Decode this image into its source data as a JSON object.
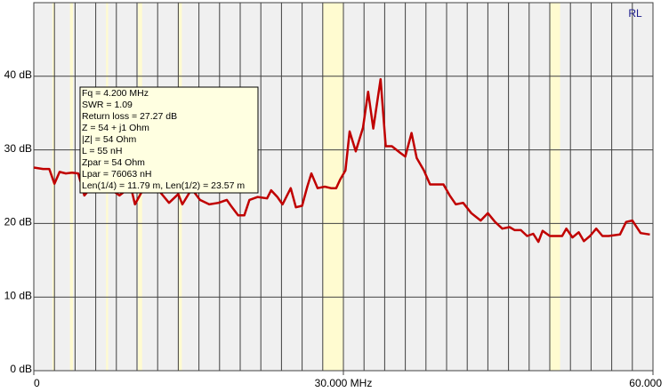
{
  "chart_data": {
    "type": "line",
    "title": "RL",
    "x": [
      0.0,
      0.9,
      1.5,
      2.0,
      2.5,
      3.1,
      3.7,
      4.3,
      4.9,
      6.0,
      7.1,
      8.3,
      9.4,
      9.8,
      10.5,
      11.8,
      13.1,
      14.0,
      14.4,
      15.3,
      16.1,
      17.0,
      17.9,
      18.7,
      19.1,
      19.8,
      20.4,
      20.9,
      21.7,
      22.6,
      23.0,
      23.6,
      24.1,
      24.9,
      25.4,
      26.0,
      26.5,
      26.9,
      27.5,
      28.2,
      28.8,
      29.3,
      29.7,
      30.2,
      30.6,
      31.2,
      31.9,
      32.4,
      32.9,
      33.6,
      34.1,
      34.7,
      35.5,
      36.0,
      36.6,
      37.1,
      37.8,
      38.4,
      39.7,
      40.3,
      40.9,
      41.6,
      42.4,
      43.3,
      44.0,
      44.7,
      45.4,
      46.1,
      46.6,
      47.2,
      47.8,
      48.4,
      48.9,
      49.3,
      50.0,
      51.2,
      51.6,
      52.2,
      52.8,
      53.3,
      53.9,
      54.5,
      55.1,
      55.7,
      56.8,
      57.4,
      58.0,
      58.8,
      59.7
    ],
    "values": [
      27.6,
      27.4,
      27.4,
      25.4,
      27.0,
      26.8,
      26.9,
      26.8,
      23.8,
      25.6,
      25.0,
      23.8,
      25.0,
      22.6,
      24.4,
      25.0,
      22.8,
      24.0,
      22.6,
      24.7,
      23.2,
      22.6,
      22.8,
      23.2,
      22.4,
      21.1,
      21.1,
      23.2,
      23.6,
      23.4,
      24.5,
      23.6,
      22.6,
      24.8,
      22.2,
      22.4,
      25.0,
      26.8,
      24.8,
      25.0,
      24.8,
      24.8,
      26.0,
      27.2,
      32.5,
      29.8,
      33.0,
      37.9,
      32.9,
      39.6,
      30.5,
      30.5,
      29.6,
      29.1,
      32.3,
      28.9,
      27.2,
      25.3,
      25.3,
      23.8,
      22.6,
      22.8,
      21.4,
      20.4,
      21.4,
      20.2,
      19.3,
      19.5,
      19.1,
      19.1,
      18.3,
      18.6,
      17.5,
      19.0,
      18.3,
      18.3,
      19.3,
      18.1,
      18.8,
      17.6,
      18.3,
      19.3,
      18.3,
      18.3,
      18.5,
      20.2,
      20.4,
      18.7,
      18.5
    ],
    "color": "#c00000",
    "xlim": [
      0,
      60
    ],
    "xticks": [
      {
        "value": 0,
        "label": "0"
      },
      {
        "value": 30,
        "label": "30.000 MHz"
      },
      {
        "value": 60,
        "label": "60.000"
      }
    ],
    "xgrid": [
      2,
      4,
      6,
      8,
      10,
      12,
      14,
      16,
      18,
      20,
      22,
      24,
      26,
      28,
      30,
      32,
      34,
      36,
      38,
      40,
      42,
      44,
      46,
      48,
      50,
      52,
      54,
      56,
      58
    ],
    "ylim": [
      0,
      50
    ],
    "yticks": [
      {
        "value": 0,
        "label": "0 dB"
      },
      {
        "value": 10,
        "label": "10 dB"
      },
      {
        "value": 20,
        "label": "20 dB"
      },
      {
        "value": 30,
        "label": "30 dB"
      },
      {
        "value": 40,
        "label": "40 dB"
      }
    ],
    "bands": [
      [
        1.8,
        2.0
      ],
      [
        3.5,
        3.8
      ],
      [
        7.0,
        7.2
      ],
      [
        10.1,
        10.5
      ],
      [
        14.0,
        14.35
      ],
      [
        28.0,
        30.0
      ],
      [
        50.0,
        51.0
      ]
    ],
    "band_color": "#fffbd0",
    "grid": true,
    "cursor_info": [
      "Fq = 4.200 MHz",
      "SWR = 1.09",
      "Return loss = 27.27 dB",
      "Z = 54 + j1 Ohm",
      "|Z| = 54 Ohm",
      "L = 55 nH",
      "Zpar = 54 Ohm",
      "Lpar = 76063 nH",
      "Len(1/4) = 11.79 m, Len(1/2) = 23.57 m"
    ]
  }
}
